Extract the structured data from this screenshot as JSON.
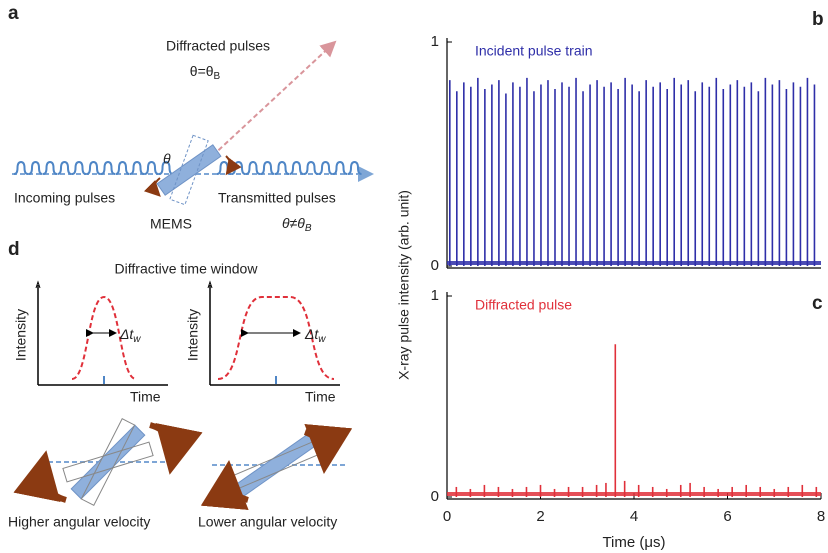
{
  "panel_a": {
    "label": "a",
    "diffracted": "Diffracted pulses",
    "cond_diff": {
      "main": "θ=θ",
      "sub": "B"
    },
    "theta": "θ",
    "incoming": "Incoming pulses",
    "mems": "MEMS",
    "transmitted": "Transmitted pulses",
    "cond_trans": {
      "main": "θ≠θ",
      "sub": "B"
    }
  },
  "panel_d": {
    "label": "d",
    "title": "Diffractive time window",
    "ylabel": "Intensity",
    "xlabel": "Time",
    "width": {
      "main": "Δt",
      "sub": "w"
    },
    "higher": "Higher angular velocity",
    "lower": "Lower angular velocity"
  },
  "ylabel": "X-ray pulse intensity (arb. unit)",
  "chart_data": [
    {
      "type": "spike",
      "label": "b",
      "series": [
        {
          "name": "Incident pulse train",
          "color": "#2e2ea8",
          "x": [
            0.06,
            0.21,
            0.36,
            0.51,
            0.66,
            0.81,
            0.96,
            1.11,
            1.26,
            1.41,
            1.56,
            1.71,
            1.86,
            2.01,
            2.16,
            2.31,
            2.46,
            2.61,
            2.76,
            2.91,
            3.06,
            3.21,
            3.36,
            3.51,
            3.66,
            3.81,
            3.96,
            4.11,
            4.26,
            4.41,
            4.56,
            4.71,
            4.86,
            5.01,
            5.16,
            5.31,
            5.46,
            5.61,
            5.76,
            5.91,
            6.06,
            6.21,
            6.36,
            6.51,
            6.66,
            6.81,
            6.96,
            7.11,
            7.26,
            7.41,
            7.56,
            7.71,
            7.86
          ],
          "values": [
            0.83,
            0.78,
            0.82,
            0.8,
            0.84,
            0.79,
            0.81,
            0.83,
            0.77,
            0.82,
            0.8,
            0.84,
            0.78,
            0.81,
            0.83,
            0.79,
            0.82,
            0.8,
            0.84,
            0.78,
            0.81,
            0.83,
            0.8,
            0.82,
            0.79,
            0.84,
            0.81,
            0.78,
            0.83,
            0.8,
            0.82,
            0.79,
            0.84,
            0.81,
            0.83,
            0.78,
            0.82,
            0.8,
            0.84,
            0.79,
            0.81,
            0.83,
            0.8,
            0.82,
            0.78,
            0.84,
            0.81,
            0.83,
            0.79,
            0.82,
            0.8,
            0.84,
            0.81
          ]
        }
      ],
      "xlim": [
        0,
        8
      ],
      "ylim": [
        0,
        1
      ],
      "yticks": [
        0,
        1
      ]
    },
    {
      "type": "spike",
      "label": "c",
      "xlabel": "Time (μs)",
      "series": [
        {
          "name": "Diffracted pulse",
          "color": "#e0303a",
          "x": [
            0.2,
            0.5,
            0.8,
            1.1,
            1.4,
            1.7,
            2.0,
            2.3,
            2.6,
            2.9,
            3.2,
            3.4,
            3.6,
            3.8,
            4.1,
            4.4,
            4.7,
            5.0,
            5.2,
            5.5,
            5.8,
            6.1,
            6.4,
            6.7,
            7.0,
            7.3,
            7.6,
            7.9
          ],
          "values": [
            0.05,
            0.04,
            0.06,
            0.05,
            0.04,
            0.05,
            0.06,
            0.04,
            0.05,
            0.05,
            0.06,
            0.07,
            0.76,
            0.08,
            0.06,
            0.05,
            0.04,
            0.06,
            0.07,
            0.05,
            0.04,
            0.05,
            0.06,
            0.05,
            0.04,
            0.05,
            0.06,
            0.05
          ]
        }
      ],
      "xlim": [
        0,
        8
      ],
      "ylim": [
        0,
        1
      ],
      "xticks": [
        0,
        2,
        4,
        6,
        8
      ],
      "yticks": [
        0,
        1
      ]
    }
  ]
}
